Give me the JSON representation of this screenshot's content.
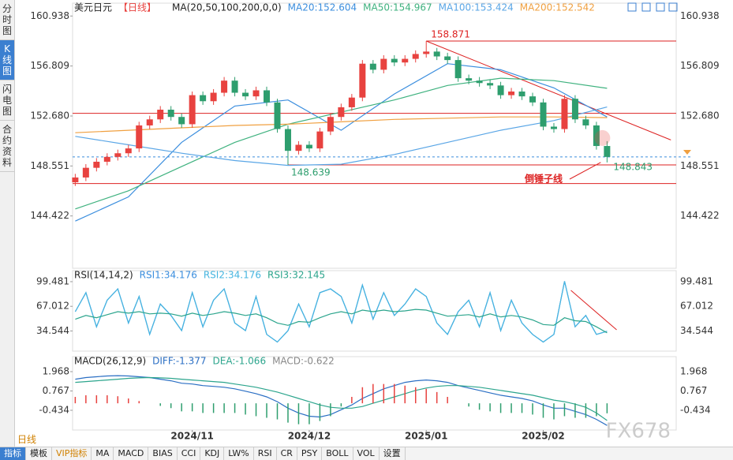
{
  "tabs": [
    "分时图",
    "K线图",
    "闪电图",
    "合约资料"
  ],
  "toolbar": {
    "period": "日线",
    "items": [
      "指标",
      "模板",
      "VIP指标",
      "MA",
      "MACD",
      "BIAS",
      "CCI",
      "KDJ",
      "LW%",
      "RSI",
      "CR",
      "PSY",
      "BOLL",
      "VOL",
      "设置"
    ]
  },
  "watermark": "FX678",
  "chart_data": [
    {
      "type": "candlestick",
      "title": "美元日元",
      "period": "【日线】",
      "indicator": "MA(20,50,100,200,0,0)",
      "up_color": "#e8423f",
      "down_color": "#2e9e6e",
      "open": [
        147.2,
        147.6,
        148.4,
        148.9,
        149.3,
        149.6,
        150.0,
        151.9,
        152.4,
        153.2,
        152.6,
        152.0,
        154.4,
        153.9,
        154.6,
        155.6,
        154.6,
        154.3,
        154.8,
        153.8,
        151.6,
        149.8,
        150.3,
        150.0,
        151.4,
        152.6,
        153.4,
        154.2,
        157.0,
        156.5,
        157.4,
        157.1,
        157.4,
        157.8,
        158.0,
        157.6,
        157.3,
        155.8,
        155.6,
        155.4,
        155.2,
        154.4,
        154.7,
        154.3,
        153.8,
        151.8,
        151.6,
        154.1,
        152.4,
        151.9,
        150.2
      ],
      "high": [
        147.9,
        148.7,
        149.2,
        149.6,
        149.9,
        150.3,
        152.2,
        152.7,
        153.5,
        153.5,
        152.9,
        154.7,
        154.7,
        154.9,
        155.9,
        155.9,
        154.9,
        155.1,
        155.1,
        154.1,
        151.9,
        150.6,
        150.6,
        151.7,
        152.9,
        153.7,
        154.5,
        157.3,
        157.3,
        157.7,
        157.7,
        157.7,
        158.1,
        158.871,
        158.3,
        157.9,
        157.6,
        156.1,
        155.9,
        155.7,
        155.5,
        155.0,
        155.0,
        154.6,
        154.1,
        152.1,
        154.4,
        154.4,
        152.7,
        152.2,
        150.6
      ],
      "low": [
        146.9,
        147.3,
        148.1,
        148.6,
        149.0,
        149.3,
        149.7,
        151.6,
        152.1,
        152.3,
        151.7,
        151.7,
        153.6,
        153.6,
        154.3,
        154.3,
        154.0,
        154.0,
        153.5,
        151.3,
        148.639,
        149.5,
        149.7,
        149.7,
        151.1,
        152.3,
        153.1,
        153.9,
        156.2,
        156.2,
        156.8,
        156.8,
        157.1,
        157.5,
        157.3,
        157.0,
        155.5,
        155.3,
        155.1,
        154.9,
        154.1,
        154.1,
        154.0,
        153.5,
        151.5,
        151.3,
        151.3,
        152.1,
        151.6,
        149.9,
        148.843
      ],
      "close": [
        147.6,
        148.4,
        148.9,
        149.3,
        149.6,
        150.0,
        151.9,
        152.4,
        153.2,
        152.6,
        152.0,
        154.4,
        153.9,
        154.6,
        155.6,
        154.6,
        154.3,
        154.8,
        153.8,
        151.6,
        149.8,
        150.3,
        150.0,
        151.4,
        152.6,
        153.4,
        154.2,
        157.0,
        156.5,
        157.4,
        157.1,
        157.4,
        157.8,
        158.0,
        157.6,
        157.3,
        155.8,
        155.6,
        155.4,
        155.2,
        154.4,
        154.7,
        154.3,
        153.8,
        151.8,
        151.6,
        154.1,
        152.4,
        151.9,
        150.2,
        149.3
      ],
      "series": [
        {
          "name": "MA20:152.604",
          "color": "#3b8ede",
          "x": [
            0,
            5,
            10,
            15,
            20,
            25,
            30,
            35,
            40,
            45,
            50
          ],
          "values": [
            144.0,
            146.0,
            150.5,
            153.5,
            154.0,
            151.5,
            154.5,
            157.0,
            156.5,
            155.0,
            152.604
          ]
        },
        {
          "name": "MA50:154.967",
          "color": "#3fb27f",
          "x": [
            0,
            5,
            10,
            15,
            20,
            25,
            30,
            35,
            40,
            45,
            50
          ],
          "values": [
            145.0,
            146.5,
            148.5,
            150.5,
            152.0,
            153.0,
            154.0,
            155.2,
            155.8,
            155.6,
            154.967
          ]
        },
        {
          "name": "MA100:153.424",
          "color": "#5aa6e6",
          "x": [
            0,
            5,
            10,
            15,
            20,
            25,
            30,
            35,
            40,
            45,
            50
          ],
          "values": [
            151.0,
            150.3,
            149.6,
            149.0,
            148.6,
            148.7,
            149.5,
            150.5,
            151.5,
            152.3,
            153.424
          ]
        },
        {
          "name": "MA200:152.542",
          "color": "#f0a040",
          "x": [
            0,
            5,
            10,
            15,
            20,
            25,
            30,
            35,
            40,
            45,
            50
          ],
          "values": [
            151.3,
            151.5,
            151.7,
            151.9,
            152.0,
            152.2,
            152.4,
            152.5,
            152.6,
            152.6,
            152.542
          ]
        }
      ],
      "levels": [
        158.871,
        152.9,
        148.639,
        147.1
      ],
      "trendline": {
        "x": [
          33,
          56
        ],
        "values": [
          158.871,
          150.7
        ]
      },
      "annotation": "倒锤子线",
      "xlim": [
        -0.25,
        56.5
      ],
      "ylim": [
        140.1,
        162.0
      ],
      "yticks": [
        160.938,
        156.809,
        {
          "value": 152.68,
          "label": "152.680"
        },
        148.551,
        144.422
      ],
      "xticks": [
        {
          "value": 11,
          "label": "2024/11"
        },
        {
          "value": 22,
          "label": "2024/12"
        },
        {
          "value": 33,
          "label": "2025/01"
        },
        {
          "value": 44,
          "label": "2025/02"
        }
      ]
    },
    {
      "type": "line",
      "title": "RSI(14,14,2)",
      "series": [
        {
          "name": "RSI1:34.176",
          "color": "#3b8ede",
          "values": [
            60,
            85,
            40,
            75,
            90,
            45,
            80,
            30,
            70,
            55,
            35,
            85,
            40,
            75,
            90,
            45,
            35,
            80,
            30,
            20,
            35,
            70,
            40,
            85,
            90,
            80,
            45,
            95,
            50,
            85,
            55,
            70,
            90,
            80,
            45,
            30,
            60,
            75,
            40,
            85,
            35,
            75,
            45,
            30,
            20,
            30,
            100,
            40,
            55,
            30,
            34.176
          ]
        },
        {
          "name": "RSI2:34.176",
          "color": "#46b5e0",
          "values": [
            60,
            85,
            40,
            75,
            90,
            45,
            80,
            30,
            70,
            55,
            35,
            85,
            40,
            75,
            90,
            45,
            35,
            80,
            30,
            20,
            35,
            70,
            40,
            85,
            90,
            80,
            45,
            95,
            50,
            85,
            55,
            70,
            90,
            80,
            45,
            30,
            60,
            75,
            40,
            85,
            35,
            75,
            45,
            30,
            20,
            30,
            100,
            40,
            55,
            30,
            34.176
          ]
        },
        {
          "name": "RSI3:32.145",
          "color": "#2ca58d",
          "values": [
            50,
            55,
            52,
            56,
            60,
            58,
            60,
            57,
            58,
            57,
            54,
            58,
            55,
            57,
            60,
            58,
            55,
            57,
            52,
            45,
            42,
            47,
            46,
            52,
            57,
            60,
            57,
            62,
            60,
            62,
            60,
            61,
            63,
            62,
            58,
            54,
            55,
            56,
            53,
            57,
            53,
            55,
            53,
            49,
            43,
            42,
            52,
            48,
            47,
            40,
            32.145
          ]
        }
      ],
      "trendline": {
        "x": [
          46.6,
          50.9
        ],
        "values": [
          88,
          36
        ]
      },
      "xlim": [
        -0.25,
        56.5
      ],
      "ylim": [
        8,
        114
      ],
      "yticks": [
        99.481,
        67.012,
        34.544
      ]
    },
    {
      "type": "macd",
      "title": "MACD(26,12,9)",
      "up_color": "#e8423f",
      "down_color": "#2e9e6e",
      "series": [
        {
          "name": "DIFF:-1.377",
          "color": "#2b6fc4",
          "values": [
            1.5,
            1.6,
            1.65,
            1.7,
            1.72,
            1.7,
            1.65,
            1.6,
            1.5,
            1.4,
            1.25,
            1.2,
            1.1,
            1.05,
            1.0,
            0.9,
            0.75,
            0.6,
            0.4,
            0.1,
            -0.3,
            -0.6,
            -0.8,
            -0.85,
            -0.7,
            -0.4,
            -0.1,
            0.3,
            0.6,
            0.9,
            1.1,
            1.3,
            1.4,
            1.45,
            1.4,
            1.3,
            1.1,
            0.95,
            0.8,
            0.65,
            0.5,
            0.4,
            0.3,
            0.15,
            -0.1,
            -0.3,
            -0.3,
            -0.5,
            -0.7,
            -1.0,
            -1.377
          ]
        },
        {
          "name": "DEA:-1.066",
          "color": "#2ca58d",
          "values": [
            1.3,
            1.35,
            1.4,
            1.45,
            1.5,
            1.55,
            1.58,
            1.6,
            1.58,
            1.55,
            1.5,
            1.45,
            1.4,
            1.35,
            1.3,
            1.2,
            1.1,
            1.0,
            0.85,
            0.7,
            0.5,
            0.3,
            0.1,
            -0.1,
            -0.25,
            -0.3,
            -0.3,
            -0.2,
            0.0,
            0.2,
            0.4,
            0.6,
            0.8,
            0.95,
            1.05,
            1.1,
            1.1,
            1.05,
            1.0,
            0.9,
            0.8,
            0.7,
            0.6,
            0.5,
            0.35,
            0.2,
            0.1,
            -0.05,
            -0.25,
            -0.6,
            -1.066
          ]
        },
        {
          "name": "MACD:-0.622",
          "color": "#888888",
          "bars": true,
          "values": [
            0.4,
            0.5,
            0.5,
            0.5,
            0.44,
            0.3,
            0.14,
            0,
            -0.16,
            -0.3,
            -0.5,
            -0.5,
            -0.6,
            -0.6,
            -0.6,
            -0.6,
            -0.7,
            -0.8,
            -0.9,
            -1.0,
            -1.2,
            -1.3,
            -1.3,
            -1.1,
            -0.8,
            -0.2,
            0.4,
            1.0,
            1.2,
            1.2,
            1.2,
            1.1,
            1.0,
            0.9,
            0.7,
            0.4,
            0,
            -0.2,
            -0.4,
            -0.5,
            -0.6,
            -0.6,
            -0.6,
            -0.7,
            -0.9,
            -1.0,
            -0.8,
            -0.9,
            -0.9,
            -0.8,
            -0.622
          ]
        }
      ],
      "xlim": [
        -0.25,
        56.5
      ],
      "ylim": [
        -1.66,
        2.9
      ],
      "yticks": [
        1.968,
        0.767,
        -0.434
      ]
    }
  ]
}
